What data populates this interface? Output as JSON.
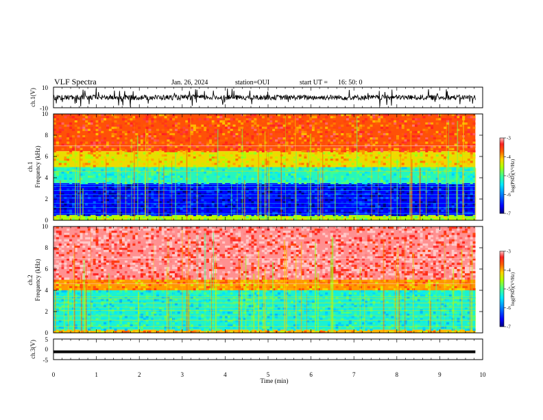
{
  "header": {
    "title": "VLF Spectra",
    "date": "Jan. 26, 2024",
    "station": "station=OUI",
    "start": "start UT =",
    "start_time": "16: 50: 0"
  },
  "colors": {
    "spectrum_scale": [
      "#00007f",
      "#0000ff",
      "#0080ff",
      "#00e0ff",
      "#40ffb0",
      "#80ff40",
      "#d8ff00",
      "#ffb000",
      "#ff4a00",
      "#ff3030",
      "#ff8080"
    ],
    "waveform": "#000000"
  },
  "chart_data": [
    {
      "type": "line",
      "name": "ch1-waveform",
      "ylabel": "ch.1(V)",
      "ylim": [
        -10,
        10
      ],
      "yticks": [
        "10",
        "-10"
      ],
      "approx_values": {
        "mean": 0,
        "typical_range": [
          -2.5,
          2.5
        ],
        "spike_range": [
          -9,
          9
        ]
      }
    },
    {
      "type": "heatmap",
      "name": "ch1-spectrogram",
      "ylabel_lines": [
        "ch.1",
        "Frequency (kHz)"
      ],
      "ylim": [
        0,
        10
      ],
      "yticks": [
        "0",
        "2",
        "4",
        "6",
        "8",
        "10"
      ],
      "colorbar": {
        "label": "log(PSD)(V²/Hz)",
        "range": [
          -7,
          -3
        ],
        "ticks": [
          "-3",
          "-4",
          "-5",
          "-6",
          "-7"
        ]
      },
      "bands": [
        {
          "freq_khz": [
            0,
            0.5
          ],
          "level": -4.5
        },
        {
          "freq_khz": [
            0.5,
            3.5
          ],
          "level": -6.6
        },
        {
          "freq_khz": [
            3.5,
            5
          ],
          "level": -5.2
        },
        {
          "freq_khz": [
            5,
            6.5
          ],
          "level": -4.2
        },
        {
          "freq_khz": [
            6.5,
            10
          ],
          "level": -3.6
        }
      ]
    },
    {
      "type": "heatmap",
      "name": "ch2-spectrogram",
      "ylabel_lines": [
        "ch.2",
        "Frequency (kHz)"
      ],
      "ylim": [
        0,
        10
      ],
      "yticks": [
        "0",
        "2",
        "4",
        "6",
        "8",
        "10"
      ],
      "colorbar": {
        "label": "log(PSD)(V²/Hz)",
        "range": [
          -7,
          -3
        ],
        "ticks": [
          "-3",
          "-4",
          "-5",
          "-6",
          "-7"
        ]
      },
      "bands": [
        {
          "freq_khz": [
            0,
            0.3
          ],
          "level": -4.0
        },
        {
          "freq_khz": [
            0.3,
            4
          ],
          "level": -5.3
        },
        {
          "freq_khz": [
            4,
            5
          ],
          "level": -3.9
        },
        {
          "freq_khz": [
            5,
            10
          ],
          "level": -3.1
        }
      ]
    },
    {
      "type": "line",
      "name": "ch3-waveform",
      "ylabel": "ch.3(V)",
      "ylim": [
        -5,
        5
      ],
      "yticks": [
        "5",
        "0",
        "-5"
      ],
      "approx_values": {
        "constant": -1.2
      }
    }
  ],
  "xaxis": {
    "label": "Time (min)",
    "range": [
      0,
      10
    ],
    "ticks": [
      "0",
      "1",
      "2",
      "3",
      "4",
      "5",
      "6",
      "7",
      "8",
      "9",
      "10"
    ],
    "data_end": 9.83
  }
}
